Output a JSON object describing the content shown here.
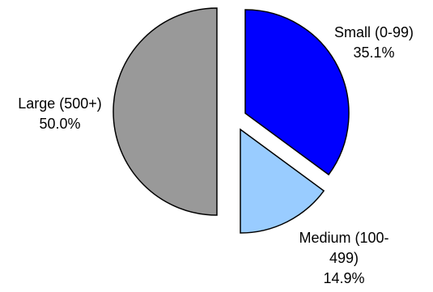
{
  "chart_data": {
    "type": "pie",
    "title": "",
    "slices": [
      {
        "name": "Small (0-99)",
        "value": 35.1,
        "percent_label": "35.1%",
        "label_lines": [
          "Small (0-99)",
          "35.1%"
        ],
        "color": "#0000ff",
        "exploded": true
      },
      {
        "name": "Medium (100-499)",
        "value": 14.9,
        "percent_label": "14.9%",
        "label_lines": [
          "Medium (100-",
          "499)",
          "14.9%"
        ],
        "color": "#99ccff",
        "exploded": true
      },
      {
        "name": "Large (500+)",
        "value": 50.0,
        "percent_label": "50.0%",
        "label_lines": [
          "Large (500+)",
          "50.0%"
        ],
        "color": "#999999",
        "exploded": true
      }
    ],
    "outline_color": "#000000",
    "legend": "none"
  }
}
